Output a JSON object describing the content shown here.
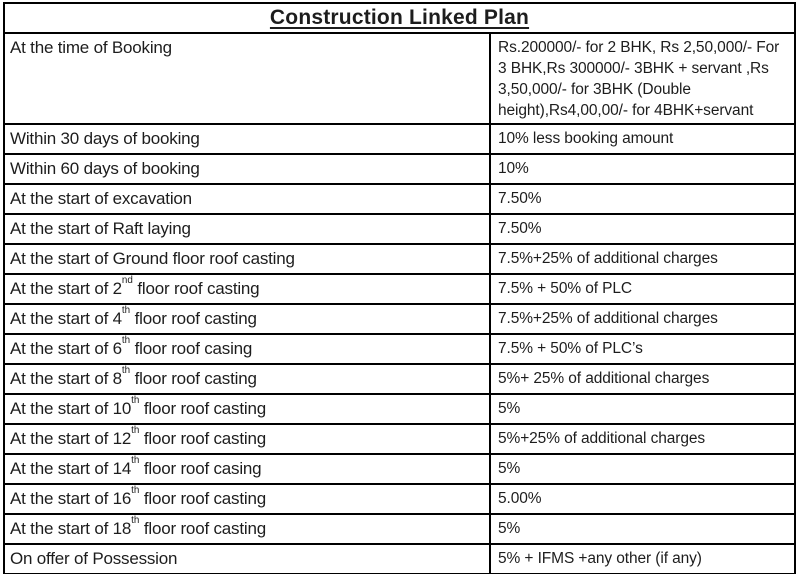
{
  "title": "Construction Linked Plan",
  "table": {
    "rows": [
      {
        "milestone": "At the time of Booking",
        "payment": "Rs.200000/- for 2 BHK, Rs 2,50,000/- For 3 BHK,Rs 300000/- 3BHK + servant ,Rs 3,50,000/- for 3BHK (Double height),Rs4,00,00/- for 4BHK+servant"
      },
      {
        "milestone": "Within 30 days of booking",
        "payment": "10% less booking amount"
      },
      {
        "milestone": "Within 60 days of booking",
        "payment": "10%"
      },
      {
        "milestone": "At the start of excavation",
        "payment": "7.50%"
      },
      {
        "milestone": "At the start of Raft laying",
        "payment": "7.50%"
      },
      {
        "milestone": "At the start of Ground floor roof casting",
        "payment": "7.5%+25% of additional charges"
      },
      {
        "milestone": "At the start of 2nd floor roof casting",
        "payment": "7.5% + 50% of PLC"
      },
      {
        "milestone": "At the start of 4th floor roof casting",
        "payment": "7.5%+25% of additional charges"
      },
      {
        "milestone": "At the start of 6th floor roof casing",
        "payment": "7.5% + 50% of PLC’s"
      },
      {
        "milestone": "At the start of 8th floor roof casting",
        "payment": "5%+ 25% of additional charges"
      },
      {
        "milestone": "At the start of 10th floor roof casting",
        "payment": "5%"
      },
      {
        "milestone": "At the start of 12th floor roof casting",
        "payment": "5%+25% of additional charges"
      },
      {
        "milestone": "At the start of 14th floor roof casing",
        "payment": "5%"
      },
      {
        "milestone": "At the start of 16th floor roof casting",
        "payment": "5.00%"
      },
      {
        "milestone": "At the start of 18th floor roof casting",
        "payment": "5%"
      },
      {
        "milestone": "On offer of Possession",
        "payment": "5% + IFMS +any other (if any)"
      }
    ]
  },
  "colors": {
    "background": "#ffffff",
    "border": "#000000",
    "text": "#1d1d1d"
  }
}
